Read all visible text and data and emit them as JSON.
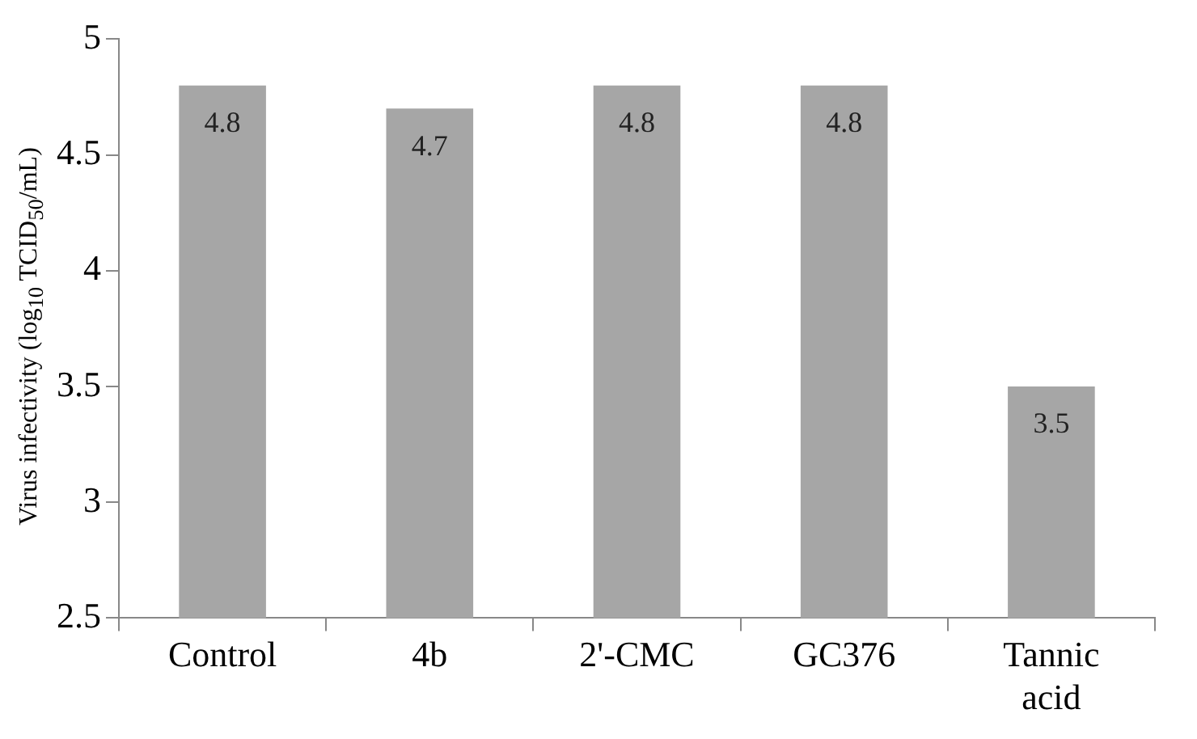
{
  "chart_data": {
    "type": "bar",
    "ylabel": "Virus infectivity (log$_{10}$ TCID$_{50}$/mL)",
    "categories": [
      "Control",
      "4b",
      "2'-CMC",
      "GC376",
      "Tannic acid"
    ],
    "values": [
      4.8,
      4.7,
      4.8,
      4.8,
      3.5
    ],
    "color": "#a6a6a6",
    "ylim": [
      2.5,
      5
    ],
    "yticks": [
      2.5,
      3,
      3.5,
      4,
      4.5,
      5
    ],
    "grid": false,
    "legend": false,
    "data_labels": true
  }
}
